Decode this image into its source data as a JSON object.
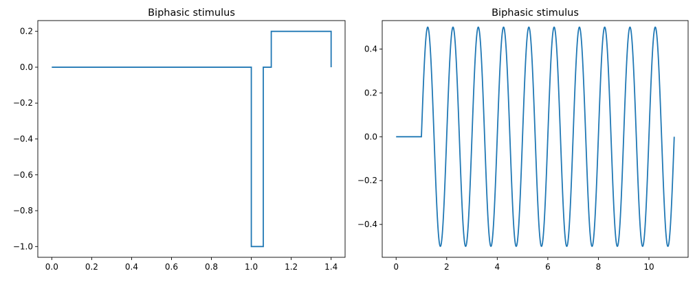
{
  "chart_data": [
    {
      "type": "line",
      "title": "Biphasic stimulus",
      "xlabel": "",
      "ylabel": "",
      "xlim": [
        -0.07,
        1.47
      ],
      "ylim": [
        -1.06,
        0.26
      ],
      "x_ticks": [
        0.0,
        0.2,
        0.4,
        0.6,
        0.8,
        1.0,
        1.2,
        1.4
      ],
      "x_tick_labels": [
        "0.0",
        "0.2",
        "0.4",
        "0.6",
        "0.8",
        "1.0",
        "1.2",
        "1.4"
      ],
      "y_ticks": [
        0.2,
        0.0,
        -0.2,
        -0.4,
        -0.6,
        -0.8,
        -1.0
      ],
      "y_tick_labels": [
        "0.2",
        "0.0",
        "−0.2",
        "−0.4",
        "−0.6",
        "−0.8",
        "−1.0"
      ],
      "grid": false,
      "color": "#1f77b4",
      "series": [
        {
          "x": [
            0.0,
            1.0,
            1.0,
            1.06,
            1.06,
            1.1,
            1.1,
            1.4,
            1.4
          ],
          "y": [
            0.0,
            0.0,
            -1.0,
            -1.0,
            0.0,
            0.0,
            0.2,
            0.2,
            0.0
          ]
        }
      ]
    },
    {
      "type": "line",
      "title": "Biphasic stimulus",
      "xlabel": "",
      "ylabel": "",
      "xlim": [
        -0.55,
        11.55
      ],
      "ylim": [
        -0.55,
        0.53
      ],
      "x_ticks": [
        0,
        2,
        4,
        6,
        8,
        10
      ],
      "x_tick_labels": [
        "0",
        "2",
        "4",
        "6",
        "8",
        "10"
      ],
      "y_ticks": [
        0.4,
        0.2,
        0.0,
        -0.2,
        -0.4
      ],
      "y_tick_labels": [
        "0.4",
        "0.2",
        "0.0",
        "−0.2",
        "−0.4"
      ],
      "grid": false,
      "color": "#1f77b4",
      "series": [
        {
          "function": "sine",
          "flat_segment": {
            "x": [
              0,
              1
            ],
            "y": 0.0
          },
          "amplitude": 0.5,
          "frequency": 1,
          "x_start": 1,
          "x_end": 11
        }
      ]
    }
  ]
}
